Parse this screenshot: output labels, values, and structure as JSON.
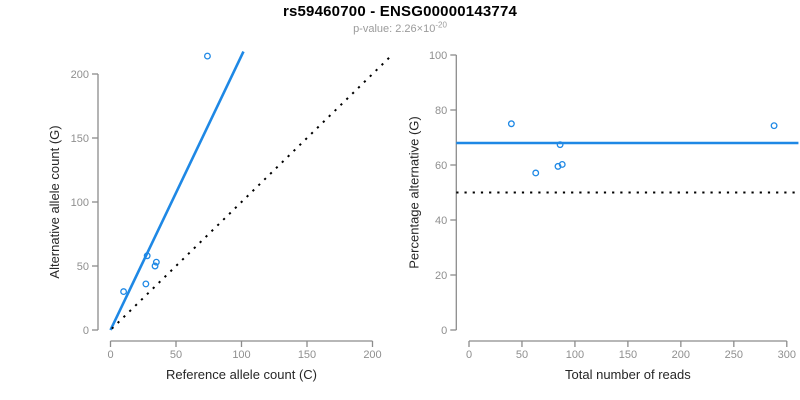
{
  "figure": {
    "title": "rs59460700 - ENSG00000143774",
    "subtitle": {
      "prefix": "p-value: 2.26",
      "multiply_sign": "×",
      "base": "10",
      "exponent": "-20"
    }
  },
  "colors": {
    "accent_blue": "#1E88E5",
    "reference_black": "#000000",
    "axis_line": "#8C8C8C",
    "tick_label": "#8F8F8F",
    "axis_title": "#262626",
    "title": "#000000",
    "subtitle": "#9B9B9B",
    "background": "#FFFFFF"
  },
  "chart_data": [
    {
      "name": "allele-count-scatter",
      "type": "scatter",
      "xlabel": "Reference allele count (C)",
      "ylabel": "Alternative allele count (G)",
      "xlim": [
        0,
        200
      ],
      "ylim": [
        0,
        200
      ],
      "xticks": [
        0,
        50,
        100,
        150,
        200
      ],
      "yticks": [
        0,
        50,
        100,
        150,
        200
      ],
      "grid": false,
      "legend": "none",
      "points": [
        [
          10,
          30
        ],
        [
          27,
          36
        ],
        [
          28,
          58
        ],
        [
          34,
          50
        ],
        [
          35,
          53
        ],
        [
          74,
          214
        ]
      ],
      "point_color": "#1E88E5",
      "lines": [
        {
          "name": "regression-line",
          "style": "solid",
          "color": "#1E88E5",
          "width": 2.6,
          "from": [
            0,
            0
          ],
          "to": [
            101.5,
            217.5
          ]
        },
        {
          "name": "identity-line",
          "style": "dotted",
          "color": "#000000",
          "width": 2,
          "from": [
            1,
            1
          ],
          "to": [
            213,
            213
          ]
        }
      ]
    },
    {
      "name": "percentage-scatter",
      "type": "scatter",
      "xlabel": "Total number of reads",
      "ylabel": "Percentage alternative (G)",
      "xlim": [
        0,
        300
      ],
      "ylim": [
        0,
        100
      ],
      "xticks": [
        0,
        50,
        100,
        150,
        200,
        250,
        300
      ],
      "yticks": [
        0,
        20,
        40,
        60,
        80,
        100
      ],
      "grid": false,
      "legend": "none",
      "points": [
        [
          40,
          75
        ],
        [
          63,
          57.1
        ],
        [
          84,
          59.5
        ],
        [
          88,
          60.2
        ],
        [
          86,
          67.4
        ],
        [
          288,
          74.3
        ]
      ],
      "point_color": "#1E88E5",
      "lines": [
        {
          "name": "mean-percentage-line",
          "style": "solid",
          "color": "#1E88E5",
          "width": 2.6,
          "from": [
            -12,
            68
          ],
          "to": [
            311,
            68
          ]
        },
        {
          "name": "fifty-percent-line",
          "style": "dotted",
          "color": "#000000",
          "width": 2,
          "from": [
            -12,
            50
          ],
          "to": [
            311,
            50
          ]
        }
      ]
    }
  ]
}
